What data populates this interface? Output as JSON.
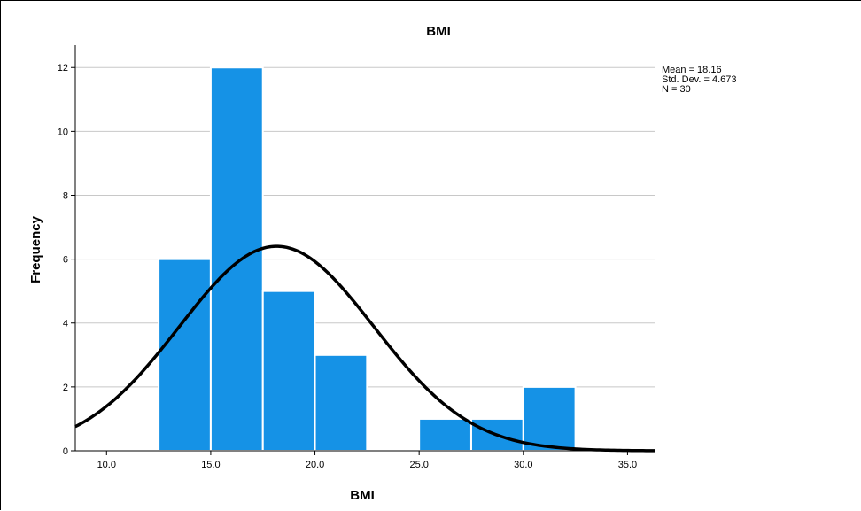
{
  "chart_data": {
    "type": "bar",
    "title": "BMI",
    "xlabel": "BMI",
    "ylabel": "Frequency",
    "xlim": [
      8.5,
      36.3
    ],
    "ylim": [
      0,
      12.7
    ],
    "x_ticks": [
      "10.0",
      "15.0",
      "20.0",
      "25.0",
      "30.0",
      "35.0"
    ],
    "y_ticks": [
      "0",
      "2",
      "4",
      "6",
      "8",
      "10",
      "12"
    ],
    "bins": [
      {
        "start": 12.5,
        "end": 15.0,
        "count": 6
      },
      {
        "start": 15.0,
        "end": 17.5,
        "count": 12
      },
      {
        "start": 17.5,
        "end": 20.0,
        "count": 5
      },
      {
        "start": 20.0,
        "end": 22.5,
        "count": 3
      },
      {
        "start": 22.5,
        "end": 25.0,
        "count": 0
      },
      {
        "start": 25.0,
        "end": 27.5,
        "count": 1
      },
      {
        "start": 27.5,
        "end": 30.0,
        "count": 1
      },
      {
        "start": 30.0,
        "end": 32.5,
        "count": 2
      }
    ],
    "normal_curve": {
      "mean": 18.16,
      "sd": 4.673,
      "n": 30
    },
    "stats": [
      "Mean = 18.16",
      "Std. Dev. = 4.673",
      "N = 30"
    ],
    "grid": true,
    "colors": {
      "bar": "#1592e6",
      "curve": "#000000",
      "grid": "#c8c8c8"
    }
  }
}
